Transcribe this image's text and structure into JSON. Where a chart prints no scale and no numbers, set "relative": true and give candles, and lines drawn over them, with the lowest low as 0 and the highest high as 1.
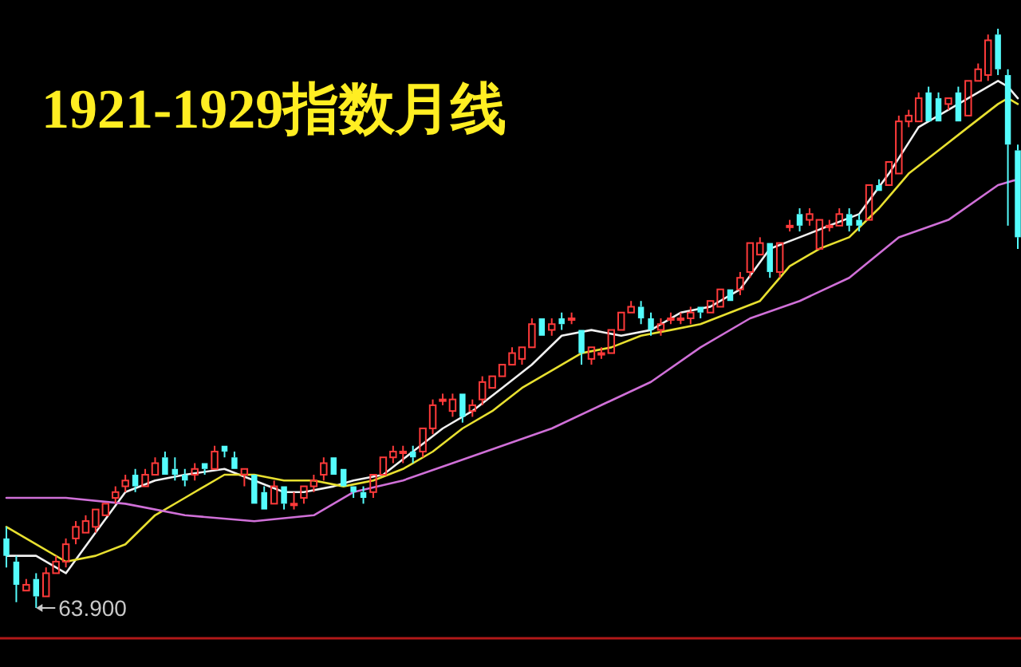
{
  "chart_data": {
    "type": "candlestick",
    "title": "1921-1929指数月线",
    "relative": true,
    "categories": [
      null,
      null,
      null,
      null,
      null,
      null,
      null,
      null,
      null,
      null,
      null,
      null,
      null,
      null,
      null,
      null,
      null,
      null,
      null,
      null,
      null,
      null,
      null,
      null,
      null,
      null,
      null,
      null,
      null,
      null,
      null,
      null,
      null,
      null,
      null,
      null,
      null,
      null,
      null,
      null,
      null,
      null,
      null,
      null,
      null,
      null,
      null,
      null,
      null,
      null,
      null,
      null,
      null,
      null,
      null,
      null,
      null,
      null,
      null,
      null,
      null,
      null,
      null,
      null,
      null,
      null,
      null,
      null,
      null,
      null,
      null,
      null,
      null,
      null,
      null,
      null,
      null,
      null,
      null,
      null,
      null,
      null,
      null,
      null,
      null,
      null,
      null,
      null,
      null,
      null,
      null,
      null,
      null,
      null,
      null,
      null,
      null,
      null,
      null,
      null,
      null,
      null,
      null
    ],
    "ohlc": [
      [
        0.12,
        0.14,
        0.07,
        0.09
      ],
      [
        0.08,
        0.09,
        0.01,
        0.04
      ],
      [
        0.03,
        0.05,
        0.03,
        0.04
      ],
      [
        0.05,
        0.06,
        0,
        0.02
      ],
      [
        0.02,
        0.07,
        0.02,
        0.06
      ],
      [
        0.06,
        0.09,
        0.06,
        0.08
      ],
      [
        0.08,
        0.12,
        0.07,
        0.11
      ],
      [
        0.12,
        0.15,
        0.11,
        0.14
      ],
      [
        0.13,
        0.16,
        0.13,
        0.15
      ],
      [
        0.14,
        0.17,
        0.13,
        0.17
      ],
      [
        0.16,
        0.18,
        0.16,
        0.18
      ],
      [
        0.19,
        0.21,
        0.18,
        0.2
      ],
      [
        0.21,
        0.23,
        0.2,
        0.22
      ],
      [
        0.23,
        0.24,
        0.2,
        0.21
      ],
      [
        0.21,
        0.24,
        0.21,
        0.23
      ],
      [
        0.23,
        0.26,
        0.23,
        0.25
      ],
      [
        0.26,
        0.27,
        0.23,
        0.23
      ],
      [
        0.24,
        0.26,
        0.22,
        0.23
      ],
      [
        0.23,
        0.24,
        0.21,
        0.22
      ],
      [
        0.23,
        0.25,
        0.22,
        0.24
      ],
      [
        0.25,
        0.25,
        0.23,
        0.24
      ],
      [
        0.24,
        0.28,
        0.24,
        0.27
      ],
      [
        0.28,
        0.28,
        0.26,
        0.27
      ],
      [
        0.26,
        0.27,
        0.24,
        0.24
      ],
      [
        0.23,
        0.24,
        0.21,
        0.24
      ],
      [
        0.23,
        0.23,
        0.18,
        0.18
      ],
      [
        0.2,
        0.21,
        0.17,
        0.17
      ],
      [
        0.18,
        0.22,
        0.18,
        0.21
      ],
      [
        0.21,
        0.21,
        0.17,
        0.18
      ],
      [
        0.18,
        0.2,
        0.17,
        0.18
      ],
      [
        0.19,
        0.21,
        0.18,
        0.21
      ],
      [
        0.21,
        0.23,
        0.2,
        0.22
      ],
      [
        0.23,
        0.26,
        0.22,
        0.25
      ],
      [
        0.26,
        0.26,
        0.23,
        0.23
      ],
      [
        0.24,
        0.24,
        0.21,
        0.21
      ],
      [
        0.21,
        0.21,
        0.19,
        0.2
      ],
      [
        0.2,
        0.21,
        0.18,
        0.19
      ],
      [
        0.2,
        0.23,
        0.19,
        0.23
      ],
      [
        0.23,
        0.26,
        0.23,
        0.26
      ],
      [
        0.26,
        0.28,
        0.25,
        0.27
      ],
      [
        0.27,
        0.28,
        0.25,
        0.27
      ],
      [
        0.27,
        0.28,
        0.25,
        0.26
      ],
      [
        0.27,
        0.31,
        0.26,
        0.31
      ],
      [
        0.31,
        0.36,
        0.3,
        0.35
      ],
      [
        0.36,
        0.37,
        0.35,
        0.36
      ],
      [
        0.34,
        0.37,
        0.33,
        0.36
      ],
      [
        0.37,
        0.37,
        0.32,
        0.33
      ],
      [
        0.34,
        0.36,
        0.33,
        0.35
      ],
      [
        0.36,
        0.4,
        0.35,
        0.39
      ],
      [
        0.38,
        0.4,
        0.38,
        0.4
      ],
      [
        0.4,
        0.42,
        0.4,
        0.42
      ],
      [
        0.42,
        0.45,
        0.42,
        0.44
      ],
      [
        0.43,
        0.45,
        0.42,
        0.45
      ],
      [
        0.45,
        0.5,
        0.45,
        0.49
      ],
      [
        0.5,
        0.5,
        0.47,
        0.47
      ],
      [
        0.48,
        0.5,
        0.47,
        0.49
      ],
      [
        0.5,
        0.51,
        0.48,
        0.49
      ],
      [
        0.5,
        0.51,
        0.49,
        0.5
      ],
      [
        0.48,
        0.48,
        0.42,
        0.44
      ],
      [
        0.43,
        0.45,
        0.42,
        0.45
      ],
      [
        0.44,
        0.45,
        0.43,
        0.44
      ],
      [
        0.44,
        0.48,
        0.44,
        0.48
      ],
      [
        0.48,
        0.51,
        0.48,
        0.51
      ],
      [
        0.51,
        0.53,
        0.51,
        0.52
      ],
      [
        0.52,
        0.53,
        0.49,
        0.5
      ],
      [
        0.5,
        0.51,
        0.47,
        0.48
      ],
      [
        0.48,
        0.5,
        0.47,
        0.49
      ],
      [
        0.5,
        0.51,
        0.49,
        0.5
      ],
      [
        0.5,
        0.51,
        0.49,
        0.5
      ],
      [
        0.5,
        0.52,
        0.49,
        0.51
      ],
      [
        0.52,
        0.52,
        0.5,
        0.51
      ],
      [
        0.51,
        0.53,
        0.51,
        0.53
      ],
      [
        0.52,
        0.55,
        0.52,
        0.55
      ],
      [
        0.55,
        0.55,
        0.53,
        0.53
      ],
      [
        0.55,
        0.58,
        0.54,
        0.57
      ],
      [
        0.58,
        0.63,
        0.57,
        0.63
      ],
      [
        0.61,
        0.64,
        0.61,
        0.63
      ],
      [
        0.63,
        0.63,
        0.57,
        0.58
      ],
      [
        0.58,
        0.63,
        0.57,
        0.63
      ],
      [
        0.66,
        0.67,
        0.65,
        0.66
      ],
      [
        0.68,
        0.69,
        0.65,
        0.66
      ],
      [
        0.67,
        0.69,
        0.66,
        0.68
      ],
      [
        0.62,
        0.67,
        0.62,
        0.67
      ],
      [
        0.66,
        0.67,
        0.65,
        0.66
      ],
      [
        0.66,
        0.69,
        0.66,
        0.68
      ],
      [
        0.68,
        0.69,
        0.65,
        0.66
      ],
      [
        0.67,
        0.68,
        0.65,
        0.66
      ],
      [
        0.67,
        0.73,
        0.67,
        0.73
      ],
      [
        0.73,
        0.74,
        0.72,
        0.72
      ],
      [
        0.73,
        0.77,
        0.73,
        0.77
      ],
      [
        0.75,
        0.85,
        0.75,
        0.84
      ],
      [
        0.84,
        0.86,
        0.83,
        0.85
      ],
      [
        0.84,
        0.89,
        0.84,
        0.88
      ],
      [
        0.89,
        0.9,
        0.84,
        0.84
      ],
      [
        0.88,
        0.89,
        0.84,
        0.84
      ],
      [
        0.87,
        0.88,
        0.86,
        0.88
      ],
      [
        0.89,
        0.9,
        0.84,
        0.84
      ],
      [
        0.85,
        0.91,
        0.85,
        0.91
      ],
      [
        0.91,
        0.94,
        0.91,
        0.93
      ],
      [
        0.92,
        0.99,
        0.91,
        0.98
      ],
      [
        0.99,
        1,
        0.92,
        0.93
      ],
      [
        0.92,
        0.93,
        0.66,
        0.8
      ],
      [
        0.79,
        0.8,
        0.62,
        0.64
      ]
    ],
    "series": [
      {
        "type": "line",
        "color": "#f0f0f0",
        "values": [
          0.09,
          null,
          null,
          0.09,
          null,
          null,
          0.06,
          null,
          null,
          0.13,
          null,
          null,
          0.2,
          null,
          null,
          0.22,
          null,
          null,
          0.23,
          null,
          null,
          null,
          0.24,
          null,
          null,
          0.22,
          null,
          null,
          0.2,
          null,
          0.2,
          null,
          null,
          0.21,
          null,
          0.22,
          null,
          null,
          0.23,
          null,
          null,
          0.27,
          null,
          null,
          0.31,
          null,
          null,
          0.34,
          null,
          null,
          0.38,
          null,
          null,
          0.42,
          null,
          null,
          0.47,
          null,
          null,
          0.48,
          null,
          null,
          0.47,
          null,
          null,
          0.48,
          null,
          null,
          0.51,
          null,
          null,
          0.52,
          null,
          null,
          0.55,
          null,
          null,
          0.62,
          null,
          null,
          0.64,
          null,
          null,
          0.66,
          null,
          null,
          0.68,
          null,
          null,
          0.75,
          null,
          null,
          0.83,
          null,
          null,
          0.86,
          null,
          null,
          0.89,
          null,
          0.91,
          0.9,
          0.88
        ]
      },
      {
        "type": "line",
        "color": "#e8e030",
        "values": [
          0.14,
          null,
          null,
          0.11,
          null,
          null,
          0.08,
          null,
          null,
          0.09,
          null,
          null,
          0.11,
          null,
          null,
          0.16,
          null,
          null,
          0.19,
          null,
          null,
          null,
          0.23,
          null,
          null,
          0.23,
          null,
          null,
          0.22,
          null,
          null,
          0.22,
          null,
          null,
          0.21,
          null,
          null,
          0.22,
          null,
          null,
          0.24,
          null,
          null,
          0.27,
          null,
          null,
          0.31,
          null,
          null,
          0.34,
          null,
          null,
          0.38,
          null,
          null,
          0.41,
          null,
          null,
          0.44,
          null,
          null,
          0.45,
          null,
          null,
          0.47,
          null,
          null,
          0.48,
          null,
          null,
          0.49,
          null,
          null,
          0.51,
          null,
          null,
          0.53,
          null,
          null,
          0.59,
          null,
          null,
          0.62,
          null,
          null,
          0.64,
          null,
          null,
          0.69,
          null,
          null,
          0.75,
          null,
          null,
          0.79,
          null,
          null,
          0.83,
          null,
          null,
          0.87,
          0.88,
          0.87
        ]
      },
      {
        "type": "line",
        "color": "#d070d8",
        "values": [
          0.19,
          null,
          null,
          null,
          null,
          null,
          0.19,
          null,
          null,
          null,
          null,
          null,
          0.18,
          null,
          null,
          null,
          null,
          null,
          0.16,
          null,
          null,
          null,
          null,
          null,
          null,
          0.15,
          null,
          null,
          null,
          null,
          null,
          0.16,
          null,
          null,
          null,
          0.2,
          null,
          null,
          null,
          null,
          0.22,
          null,
          null,
          null,
          null,
          0.25,
          null,
          null,
          null,
          null,
          0.28,
          null,
          null,
          null,
          null,
          0.31,
          null,
          null,
          null,
          null,
          0.35,
          null,
          null,
          null,
          null,
          0.39,
          null,
          null,
          null,
          null,
          0.45,
          null,
          null,
          null,
          null,
          0.5,
          null,
          null,
          null,
          null,
          0.53,
          null,
          null,
          null,
          null,
          0.57,
          null,
          null,
          null,
          null,
          0.64,
          null,
          null,
          null,
          null,
          0.67,
          null,
          null,
          null,
          null,
          0.73,
          null,
          0.74
        ]
      }
    ],
    "annotations": [
      "63.900"
    ]
  }
}
